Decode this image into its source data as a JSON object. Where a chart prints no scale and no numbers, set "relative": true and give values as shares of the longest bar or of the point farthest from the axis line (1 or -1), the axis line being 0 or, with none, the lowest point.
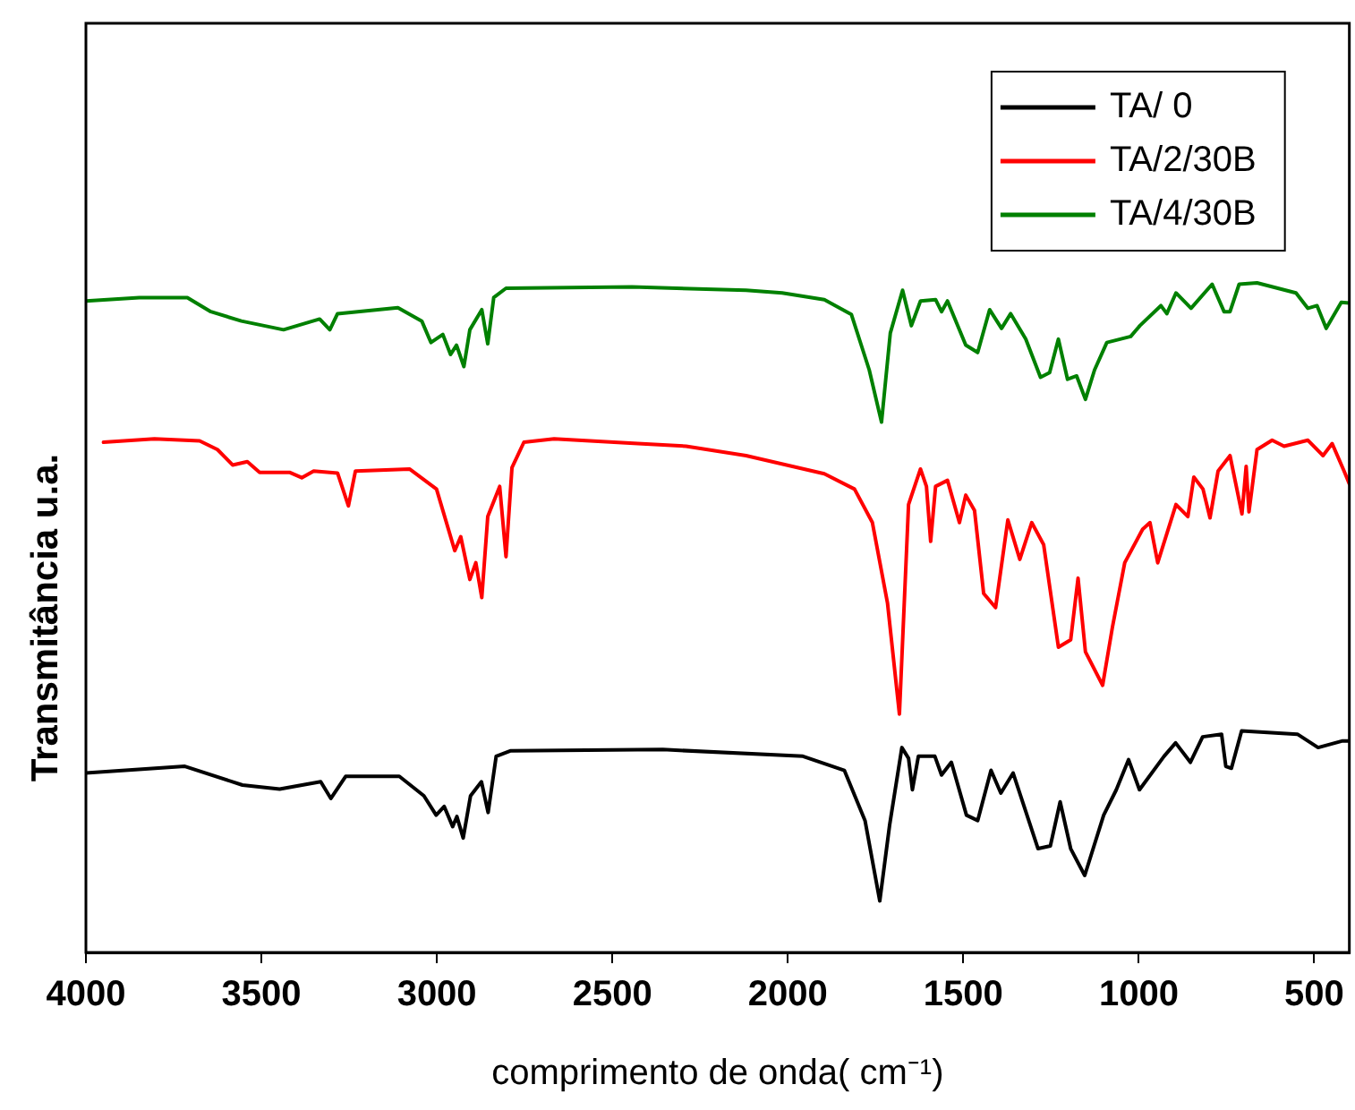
{
  "chart_data": {
    "type": "line",
    "xlabel": "comprimento de onda( cm⁻¹)",
    "ylabel": "Transmitância u.a.",
    "relative": true,
    "xlim": [
      4000,
      400
    ],
    "xticks": [
      4000,
      3500,
      3000,
      2500,
      2000,
      1500,
      1000,
      500
    ],
    "grid": false,
    "legend": "top right",
    "marker": "none",
    "line_style": "solid",
    "series": [
      {
        "name": "TA/ 0",
        "color": "#000000",
        "x": [
          4000,
          3718,
          3554,
          3448,
          3331,
          3302,
          3260,
          3107,
          3037,
          3002,
          2979,
          2955,
          2943,
          2925,
          2904,
          2873,
          2854,
          2831,
          2791,
          2356,
          1957,
          1839,
          1780,
          1738,
          1710,
          1675,
          1656,
          1645,
          1628,
          1581,
          1562,
          1534,
          1491,
          1459,
          1421,
          1393,
          1358,
          1287,
          1252,
          1224,
          1194,
          1154,
          1100,
          1064,
          1029,
          998,
          928,
          895,
          853,
          818,
          764,
          752,
          736,
          707,
          548,
          489,
          419,
          400
        ],
        "values": [
          0.268,
          0.278,
          0.25,
          0.244,
          0.255,
          0.23,
          0.263,
          0.263,
          0.234,
          0.205,
          0.218,
          0.188,
          0.203,
          0.171,
          0.234,
          0.255,
          0.209,
          0.293,
          0.301,
          0.303,
          0.293,
          0.272,
          0.197,
          0.077,
          0.19,
          0.306,
          0.29,
          0.243,
          0.293,
          0.293,
          0.265,
          0.284,
          0.205,
          0.197,
          0.272,
          0.238,
          0.268,
          0.155,
          0.159,
          0.225,
          0.155,
          0.115,
          0.205,
          0.243,
          0.288,
          0.243,
          0.293,
          0.313,
          0.284,
          0.322,
          0.326,
          0.278,
          0.275,
          0.331,
          0.326,
          0.306,
          0.316,
          0.316
        ]
      },
      {
        "name": "TA/2/30B",
        "color": "#ff0000",
        "x": [
          3950,
          3805,
          3676,
          3625,
          3582,
          3540,
          3505,
          3420,
          3385,
          3351,
          3283,
          3252,
          3232,
          3078,
          3001,
          2949,
          2932,
          2906,
          2889,
          2872,
          2855,
          2821,
          2803,
          2786,
          2752,
          2666,
          2427,
          2290,
          2119,
          1896,
          1810,
          1759,
          1716,
          1682,
          1656,
          1622,
          1605,
          1593,
          1579,
          1545,
          1511,
          1493,
          1468,
          1442,
          1408,
          1373,
          1339,
          1305,
          1271,
          1229,
          1194,
          1173,
          1152,
          1103,
          1075,
          1040,
          989,
          968,
          946,
          894,
          860,
          843,
          817,
          797,
          774,
          740,
          706,
          694,
          686,
          663,
          620,
          586,
          518,
          475,
          449,
          415,
          400
        ],
        "values": [
          0.762,
          0.767,
          0.764,
          0.751,
          0.728,
          0.733,
          0.717,
          0.717,
          0.709,
          0.719,
          0.716,
          0.667,
          0.719,
          0.722,
          0.692,
          0.6,
          0.621,
          0.557,
          0.582,
          0.53,
          0.651,
          0.696,
          0.591,
          0.724,
          0.762,
          0.767,
          0.76,
          0.756,
          0.742,
          0.715,
          0.692,
          0.642,
          0.522,
          0.356,
          0.669,
          0.722,
          0.696,
          0.614,
          0.696,
          0.705,
          0.642,
          0.683,
          0.66,
          0.536,
          0.515,
          0.646,
          0.587,
          0.642,
          0.609,
          0.456,
          0.467,
          0.559,
          0.449,
          0.399,
          0.486,
          0.582,
          0.632,
          0.642,
          0.582,
          0.669,
          0.651,
          0.71,
          0.692,
          0.649,
          0.719,
          0.742,
          0.655,
          0.726,
          0.658,
          0.751,
          0.765,
          0.756,
          0.765,
          0.742,
          0.76,
          0.719,
          0.7
        ]
      },
      {
        "name": "TA/4/30B",
        "color": "#008000",
        "x": [
          4000,
          3848,
          3711,
          3644,
          3557,
          3437,
          3334,
          3305,
          3283,
          3111,
          3043,
          3017,
          2983,
          2961,
          2944,
          2923,
          2906,
          2872,
          2855,
          2838,
          2803,
          2444,
          2119,
          2016,
          1896,
          1819,
          1768,
          1733,
          1708,
          1673,
          1648,
          1622,
          1579,
          1562,
          1545,
          1493,
          1459,
          1425,
          1391,
          1365,
          1322,
          1280,
          1254,
          1229,
          1203,
          1177,
          1152,
          1126,
          1091,
          1023,
          997,
          937,
          920,
          894,
          851,
          791,
          757,
          740,
          714,
          663,
          552,
          518,
          492,
          466,
          423,
          400
        ],
        "values": [
          0.973,
          0.978,
          0.978,
          0.957,
          0.943,
          0.93,
          0.946,
          0.93,
          0.954,
          0.963,
          0.943,
          0.911,
          0.923,
          0.893,
          0.907,
          0.875,
          0.93,
          0.96,
          0.909,
          0.978,
          0.992,
          0.994,
          0.989,
          0.985,
          0.975,
          0.953,
          0.87,
          0.792,
          0.925,
          0.989,
          0.936,
          0.973,
          0.975,
          0.957,
          0.973,
          0.907,
          0.896,
          0.96,
          0.932,
          0.954,
          0.916,
          0.859,
          0.866,
          0.916,
          0.856,
          0.861,
          0.826,
          0.87,
          0.911,
          0.92,
          0.936,
          0.966,
          0.954,
          0.985,
          0.962,
          0.998,
          0.957,
          0.957,
          0.998,
          1.0,
          0.985,
          0.962,
          0.966,
          0.932,
          0.971,
          0.97
        ]
      }
    ]
  }
}
